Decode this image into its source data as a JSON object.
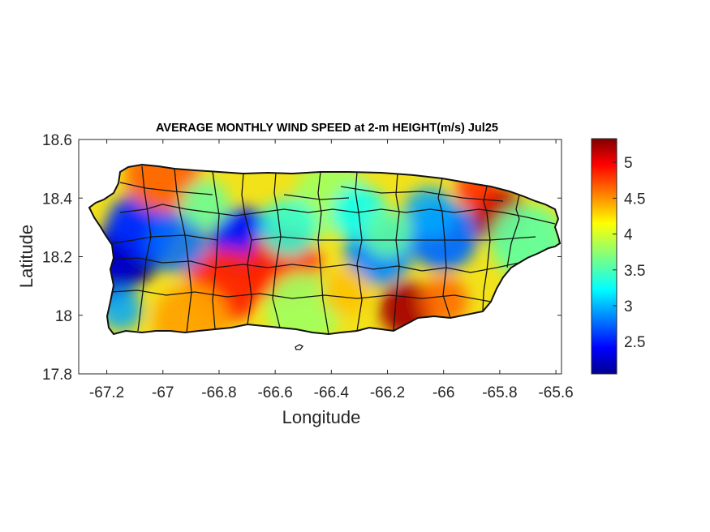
{
  "chart_data": {
    "type": "heatmap",
    "title": "AVERAGE MONTHLY WIND SPEED at 2-m HEIGHT(m/s) Jul25",
    "xlabel": "Longitude",
    "ylabel": "Latitude",
    "xlim": [
      -67.3,
      -65.58
    ],
    "ylim": [
      17.8,
      18.6
    ],
    "x_ticks": [
      -67.2,
      -67,
      -66.8,
      -66.6,
      -66.4,
      -66.2,
      -66,
      -65.8,
      -65.6
    ],
    "x_tick_labels": [
      "-67.2",
      "-67",
      "-66.8",
      "-66.6",
      "-66.4",
      "-66.2",
      "-66",
      "-65.8",
      "-65.6"
    ],
    "y_ticks": [
      17.8,
      18,
      18.2,
      18.4,
      18.6
    ],
    "y_tick_labels": [
      "17.8",
      "18",
      "18.2",
      "18.4",
      "18.6"
    ],
    "colorbar": {
      "colormap": "jet",
      "range": [
        2.05,
        5.33
      ],
      "ticks": [
        2.5,
        3,
        3.5,
        4,
        4.5,
        5
      ],
      "tick_labels": [
        "2.5",
        "3",
        "3.5",
        "4",
        "4.5",
        "5"
      ]
    },
    "grid": false,
    "regions": [
      {
        "lon": -67.12,
        "lat": 18.22,
        "value": 2.1
      },
      {
        "lon": -67.08,
        "lat": 18.3,
        "value": 2.6
      },
      {
        "lon": -66.71,
        "lat": 18.25,
        "value": 2.5
      },
      {
        "lon": -66.0,
        "lat": 18.27,
        "value": 2.8
      },
      {
        "lon": -66.23,
        "lat": 18.22,
        "value": 2.9
      },
      {
        "lon": -65.8,
        "lat": 18.34,
        "value": 5.2
      },
      {
        "lon": -66.13,
        "lat": 18.02,
        "value": 5.2
      },
      {
        "lon": -66.57,
        "lat": 18.17,
        "value": 4.8
      },
      {
        "lon": -66.78,
        "lat": 18.1,
        "value": 4.8
      },
      {
        "lon": -67.0,
        "lat": 18.48,
        "value": 4.6
      },
      {
        "lon": -66.9,
        "lat": 17.98,
        "value": 4.4
      },
      {
        "lon": -66.5,
        "lat": 18.02,
        "value": 3.8
      },
      {
        "lon": -66.4,
        "lat": 18.4,
        "value": 3.8
      },
      {
        "lon": -65.7,
        "lat": 18.25,
        "value": 3.6
      }
    ]
  }
}
